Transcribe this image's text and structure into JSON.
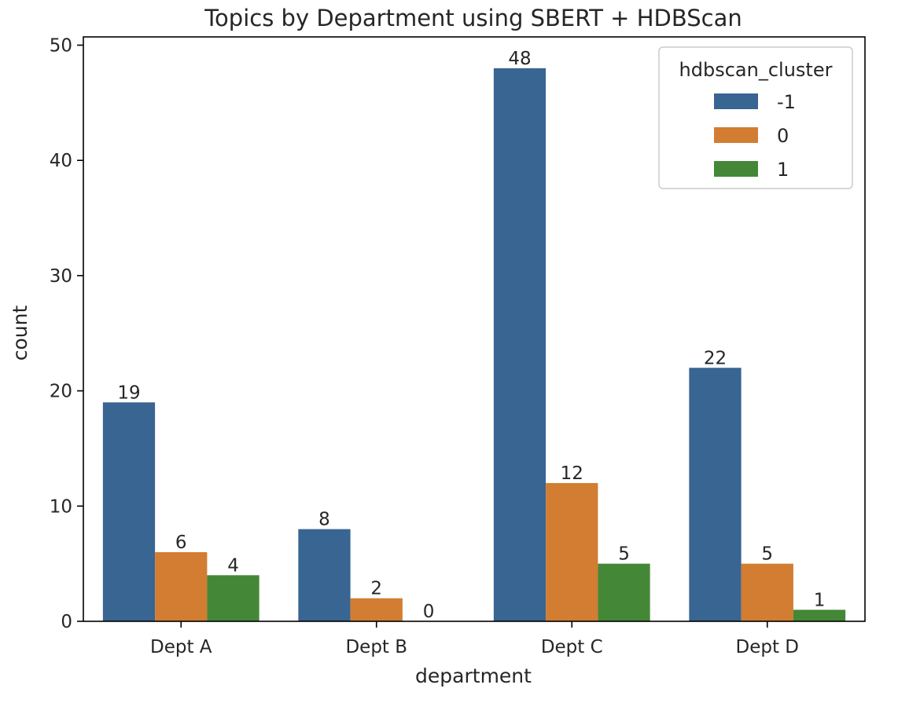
{
  "chart_data": {
    "type": "bar",
    "title": "Topics by Department using SBERT + HDBScan",
    "xlabel": "department",
    "ylabel": "count",
    "categories": [
      "Dept A",
      "Dept B",
      "Dept C",
      "Dept D"
    ],
    "ylim": [
      0,
      50
    ],
    "yticks": [
      0,
      10,
      20,
      30,
      40,
      50
    ],
    "legend": {
      "title": "hdbscan_cluster",
      "placement": "top-right"
    },
    "series": [
      {
        "name": "-1",
        "color": "#386592",
        "values": [
          19,
          8,
          48,
          22
        ],
        "labels": [
          "19",
          "8",
          "48",
          "22"
        ]
      },
      {
        "name": "0",
        "color": "#d27d31",
        "values": [
          6,
          2,
          12,
          5
        ],
        "labels": [
          "6",
          "2",
          "12",
          "5"
        ]
      },
      {
        "name": "1",
        "color": "#448837",
        "values": [
          4,
          0,
          5,
          1
        ],
        "labels": [
          "4",
          "0",
          "5",
          "1"
        ]
      }
    ],
    "grid": false
  }
}
